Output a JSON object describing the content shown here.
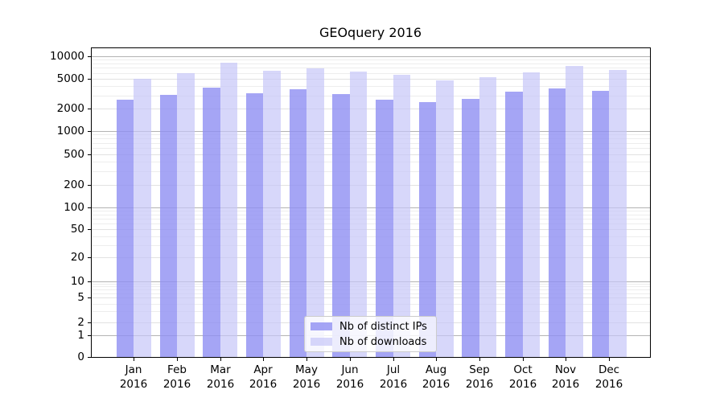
{
  "chart_data": {
    "type": "bar",
    "title": "GEOquery 2016",
    "categories": [
      "Jan",
      "Feb",
      "Mar",
      "Apr",
      "May",
      "Jun",
      "Jul",
      "Aug",
      "Sep",
      "Oct",
      "Nov",
      "Dec"
    ],
    "x_year_label": "2016",
    "series": [
      {
        "name": "Nb of distinct IPs",
        "color": "#8e8ef2",
        "alpha": 0.8,
        "values": [
          2650,
          3050,
          3800,
          3250,
          3650,
          3150,
          2650,
          2450,
          2750,
          3400,
          3700,
          3500
        ]
      },
      {
        "name": "Nb of downloads",
        "color": "#c6c6f8",
        "alpha": 0.7,
        "values": [
          5000,
          5900,
          8200,
          6400,
          6900,
          6300,
          5600,
          4750,
          5250,
          6100,
          7400,
          6600
        ]
      }
    ],
    "y_axis": {
      "scale": "symlog",
      "ticks": [
        0,
        1,
        2,
        5,
        10,
        20,
        50,
        100,
        200,
        500,
        1000,
        2000,
        5000,
        10000
      ],
      "minor_multiples": [
        3,
        4,
        6,
        7,
        8,
        9
      ],
      "minor_decades": [
        1,
        10,
        100,
        1000
      ]
    },
    "legend": {
      "position": "lower center"
    },
    "grid": true
  }
}
